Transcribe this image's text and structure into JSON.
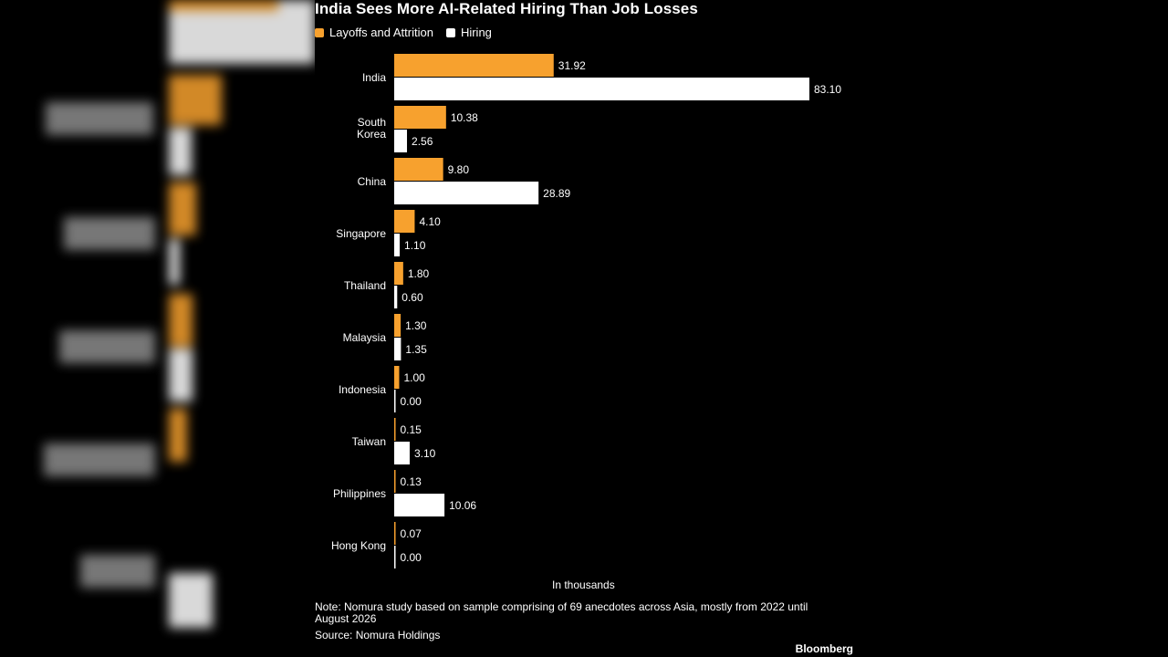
{
  "chart_data": {
    "type": "bar",
    "orientation": "horizontal",
    "title": "India Sees More AI-Related Hiring Than Job Losses",
    "categories": [
      "India",
      "South Korea",
      "China",
      "Singapore",
      "Thailand",
      "Malaysia",
      "Indonesia",
      "Taiwan",
      "Philippines",
      "Hong Kong"
    ],
    "series": [
      {
        "name": "Layoffs and Attrition",
        "color": "#f7a12e",
        "values": [
          31.92,
          10.38,
          9.8,
          4.1,
          1.8,
          1.3,
          1.0,
          0.15,
          0.13,
          0.07
        ]
      },
      {
        "name": "Hiring",
        "color": "#ffffff",
        "values": [
          83.1,
          2.56,
          28.89,
          1.1,
          0.6,
          1.35,
          0.0,
          3.1,
          10.06,
          0.0
        ]
      }
    ],
    "value_labels": [
      [
        "31.92",
        "10.38",
        "9.80",
        "4.10",
        "1.80",
        "1.30",
        "1.00",
        "0.15",
        "0.13",
        "0.07"
      ],
      [
        "83.10",
        "2.56",
        "28.89",
        "1.10",
        "0.60",
        "1.35",
        "0.00",
        "3.10",
        "10.06",
        "0.00"
      ]
    ],
    "xlabel": "In thousands",
    "xlim": [
      0,
      83.1
    ],
    "grid": false,
    "legend_position": "top-left"
  },
  "note": "Note: Nomura study based on sample comprising of 69 anecdotes across Asia, mostly from 2022 until August 2026",
  "source": "Source: Nomura Holdings",
  "brand": "Bloomberg"
}
